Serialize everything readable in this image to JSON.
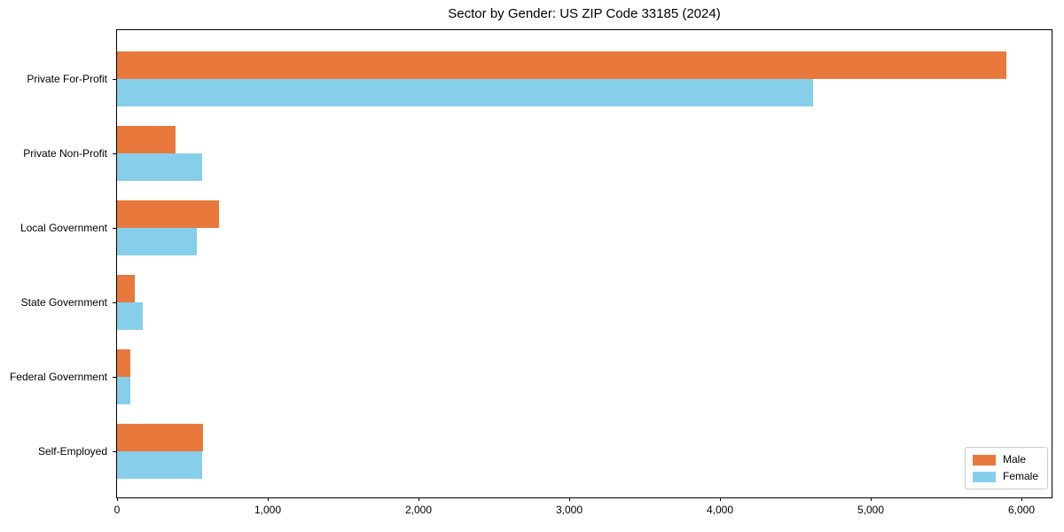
{
  "page": {
    "background": "#ffffff"
  },
  "chart_data": {
    "type": "bar",
    "orientation": "horizontal",
    "title": "Sector by Gender: US ZIP Code 33185 (2024)",
    "categories": [
      "Private For-Profit",
      "Private Non-Profit",
      "Local Government",
      "State Government",
      "Federal Government",
      "Self-Employed"
    ],
    "series": [
      {
        "name": "Male",
        "color": "#e8783c",
        "values": [
          5900,
          390,
          675,
          115,
          90,
          570
        ]
      },
      {
        "name": "Female",
        "color": "#87ceeb",
        "values": [
          4620,
          565,
          530,
          170,
          85,
          565
        ]
      }
    ],
    "xlabel": "",
    "ylabel": "",
    "xlim": [
      0,
      6200
    ],
    "xticks": [
      0,
      1000,
      2000,
      3000,
      4000,
      5000,
      6000
    ],
    "xtick_labels": [
      "0",
      "1,000",
      "2,000",
      "3,000",
      "4,000",
      "5,000",
      "6,000"
    ],
    "legend": {
      "position": "lower-right",
      "entries": [
        "Male",
        "Female"
      ]
    },
    "grid": false,
    "axis_color": "#000000"
  }
}
